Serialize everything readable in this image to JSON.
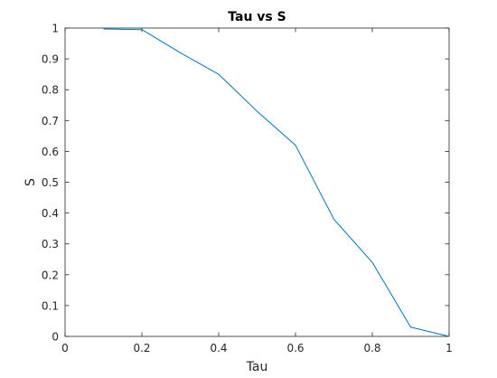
{
  "chart_data": {
    "type": "line",
    "title": "Tau vs S",
    "xlabel": "Tau",
    "ylabel": "S",
    "xlim": [
      0,
      1
    ],
    "ylim": [
      0,
      1
    ],
    "grid": false,
    "legend": "none",
    "x_ticks": [
      "0",
      "0.2",
      "0.4",
      "0.6",
      "0.8",
      "1"
    ],
    "y_ticks": [
      "0",
      "0.1",
      "0.2",
      "0.3",
      "0.4",
      "0.5",
      "0.6",
      "0.7",
      "0.8",
      "0.9",
      "1"
    ],
    "x": [
      0.1,
      0.2,
      0.3,
      0.4,
      0.5,
      0.6,
      0.7,
      0.8,
      0.9,
      1.0
    ],
    "series": [
      {
        "values": [
          0.997,
          0.995,
          0.92,
          0.85,
          0.73,
          0.62,
          0.38,
          0.24,
          0.03,
          0.0
        ]
      }
    ],
    "colors": {
      "line": "#0072BD",
      "axes": "#262626",
      "background": "#ffffff"
    }
  }
}
